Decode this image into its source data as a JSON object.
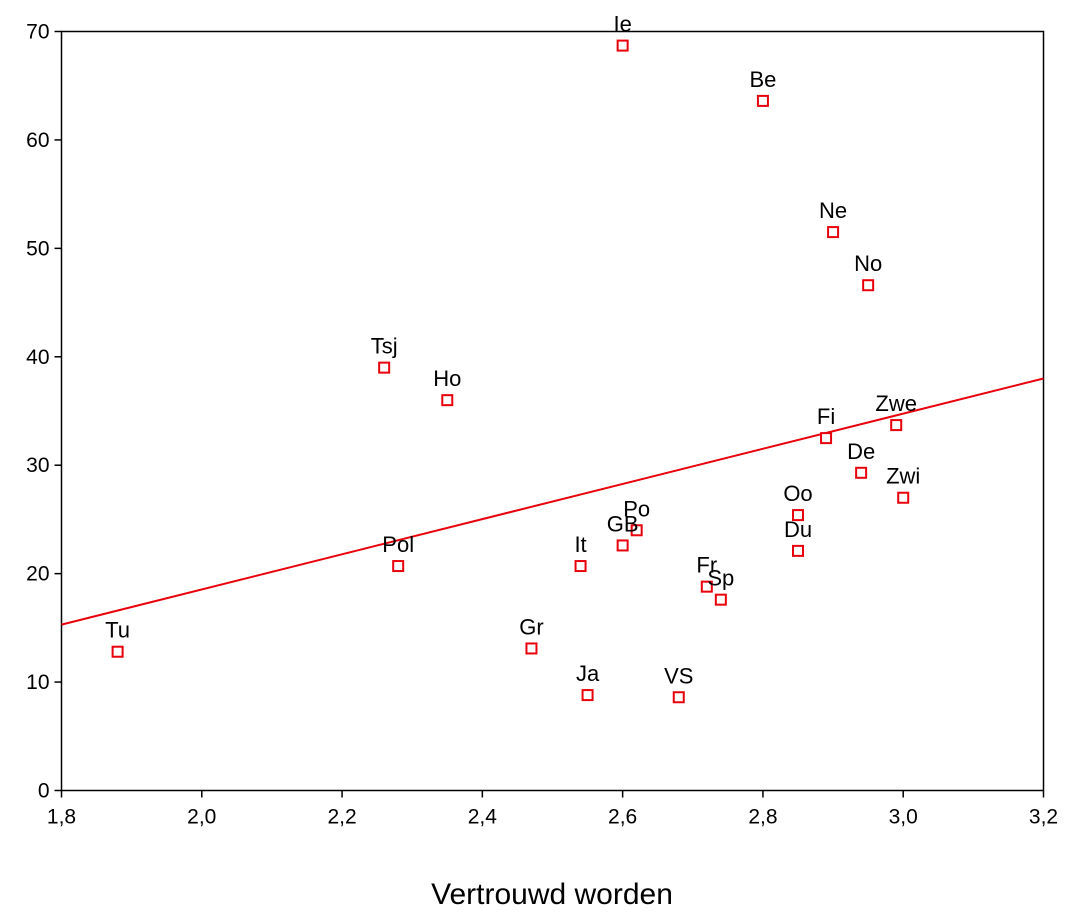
{
  "chart_data": {
    "type": "scatter",
    "title": "",
    "xlabel": "Vertrouwd worden",
    "ylabel": "",
    "xlim": [
      1.8,
      3.2
    ],
    "ylim": [
      0,
      70
    ],
    "x_ticks": [
      "1,8",
      "2,0",
      "2,2",
      "2,4",
      "2,6",
      "2,8",
      "3,0",
      "3,2"
    ],
    "y_ticks": [
      "0",
      "10",
      "20",
      "30",
      "40",
      "50",
      "60",
      "70"
    ],
    "grid": false,
    "marker_color": "#e8000b",
    "points": [
      {
        "label": "Ie",
        "x": 2.6,
        "y": 68.7
      },
      {
        "label": "Be",
        "x": 2.8,
        "y": 63.6
      },
      {
        "label": "Ne",
        "x": 2.9,
        "y": 51.5
      },
      {
        "label": "No",
        "x": 2.95,
        "y": 46.6
      },
      {
        "label": "Tsj",
        "x": 2.26,
        "y": 39.0
      },
      {
        "label": "Ho",
        "x": 2.35,
        "y": 36.0
      },
      {
        "label": "Zwe",
        "x": 2.99,
        "y": 33.7
      },
      {
        "label": "Fi",
        "x": 2.89,
        "y": 32.5
      },
      {
        "label": "De",
        "x": 2.94,
        "y": 29.3
      },
      {
        "label": "Zwi",
        "x": 3.0,
        "y": 27.0
      },
      {
        "label": "Oo",
        "x": 2.85,
        "y": 25.4
      },
      {
        "label": "Po",
        "x": 2.62,
        "y": 24.0
      },
      {
        "label": "GB",
        "x": 2.6,
        "y": 22.6
      },
      {
        "label": "Du",
        "x": 2.85,
        "y": 22.1
      },
      {
        "label": "Pol",
        "x": 2.28,
        "y": 20.7
      },
      {
        "label": "It",
        "x": 2.54,
        "y": 20.7
      },
      {
        "label": "Fr",
        "x": 2.72,
        "y": 18.8
      },
      {
        "label": "Sp",
        "x": 2.74,
        "y": 17.6
      },
      {
        "label": "Gr",
        "x": 2.47,
        "y": 13.1
      },
      {
        "label": "Tu",
        "x": 1.88,
        "y": 12.8
      },
      {
        "label": "Ja",
        "x": 2.55,
        "y": 8.8
      },
      {
        "label": "VS",
        "x": 2.68,
        "y": 8.6
      }
    ],
    "fit_line": {
      "type": "linear",
      "color": "#e8000b",
      "x": [
        1.8,
        3.2
      ],
      "y": [
        15.3,
        38.0
      ]
    }
  }
}
